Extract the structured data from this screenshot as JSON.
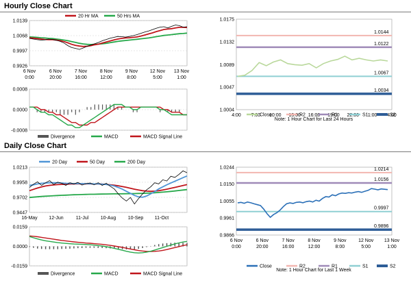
{
  "sections": {
    "hourly_title": "Hourly Close Chart",
    "daily_title": "Daily Close Chart"
  },
  "colors": {
    "close_light": "#b9d89b",
    "close_blue": "#2a6fb7",
    "r2": "#f2b6b0",
    "r1": "#9f8ab8",
    "s1": "#8fcfd3",
    "s2": "#2e5d97",
    "ma_short": "#c0151b",
    "ma_long": "#26a84a",
    "ma_mid": "#4f95d6",
    "price": "#000000",
    "macd": "#26a84a",
    "signal": "#c0151b",
    "divergence": "#555555"
  },
  "chart_data": [
    {
      "id": "hourly_price_ma",
      "type": "line",
      "y_ticks": [
        "1.0139",
        "1.0068",
        "0.9997",
        "0.9926"
      ],
      "y_tick_values": [
        1.0139,
        1.0068,
        0.9997,
        0.9926
      ],
      "ylim": [
        0.9926,
        1.0139
      ],
      "x_labels": [
        [
          "6 Nov",
          "0:00"
        ],
        [
          "6 Nov",
          "20:00"
        ],
        [
          "7 Nov",
          "16:00"
        ],
        [
          "8 Nov",
          "12:00"
        ],
        [
          "9 Nov",
          "8:00"
        ],
        [
          "12 Nov",
          "5:00"
        ],
        [
          "13 Nov",
          "1:00"
        ]
      ],
      "legend": [
        "20 Hr MA",
        "50 Hrs MA"
      ],
      "series": [
        {
          "name": "Price",
          "values": [
            1.0055,
            1.0052,
            1.0049,
            1.0047,
            1.0048,
            1.0052,
            1.005,
            1.0046,
            1.0041,
            1.0033,
            1.0021,
            1.0012,
            1.0008,
            1.0003,
            1.001,
            1.0018,
            1.0024,
            1.003,
            1.0036,
            1.0044,
            1.005,
            1.0056,
            1.006,
            1.0064,
            1.0063,
            1.0061,
            1.0064,
            1.0068,
            1.0073,
            1.0079,
            1.0085,
            1.009,
            1.0096,
            1.0103,
            1.0108,
            1.011,
            1.0104,
            1.0112,
            1.0118,
            1.0115,
            1.0108,
            1.011
          ]
        },
        {
          "name": "20 Hr MA",
          "values": [
            1.0058,
            1.0056,
            1.0054,
            1.0052,
            1.005,
            1.0049,
            1.0049,
            1.0047,
            1.0044,
            1.004,
            1.0034,
            1.0027,
            1.0022,
            1.0019,
            1.0017,
            1.0018,
            1.0021,
            1.0025,
            1.0028,
            1.0033,
            1.0038,
            1.0043,
            1.0048,
            1.0052,
            1.0055,
            1.0057,
            1.0058,
            1.006,
            1.0062,
            1.0066,
            1.0071,
            1.0076,
            1.0081,
            1.0087,
            1.0092,
            1.0097,
            1.0099,
            1.0101,
            1.0104,
            1.0107,
            1.0107,
            1.0106
          ]
        },
        {
          "name": "50 Hrs MA",
          "values": [
            1.0062,
            1.0061,
            1.006,
            1.0058,
            1.0057,
            1.0055,
            1.0054,
            1.0052,
            1.005,
            1.0047,
            1.0044,
            1.004,
            1.0036,
            1.0032,
            1.0029,
            1.0027,
            1.0026,
            1.0027,
            1.0028,
            1.003,
            1.0032,
            1.0035,
            1.0038,
            1.0041,
            1.0043,
            1.0045,
            1.0047,
            1.0049,
            1.0051,
            1.0053,
            1.0055,
            1.0057,
            1.006,
            1.0063,
            1.0066,
            1.0069,
            1.0071,
            1.0073,
            1.0075,
            1.0077,
            1.0078,
            1.008
          ]
        }
      ]
    },
    {
      "id": "hourly_macd",
      "type": "line",
      "y_ticks": [
        "0.0008",
        "0.0000",
        "-0.0008"
      ],
      "y_tick_values": [
        0.0008,
        0,
        -0.0008
      ],
      "ylim": [
        -0.0008,
        0.0008
      ],
      "legend": [
        "Divergence",
        "MACD",
        "MACD Signal Line"
      ],
      "series": [
        {
          "name": "MACD",
          "values": [
            0.0001,
            0.0001,
            0.0,
            -0.0001,
            -0.0001,
            -0.0002,
            -0.0002,
            -0.0003,
            -0.0004,
            -0.0005,
            -0.0006,
            -0.0006,
            -0.0007,
            -0.0007,
            -0.0006,
            -0.0005,
            -0.0004,
            -0.0003,
            -0.0002,
            -0.0001,
            0.0,
            0.0001,
            0.0002,
            0.0002,
            0.0002,
            0.0001,
            0.0001,
            0.0,
            0.0,
            0.0001,
            0.0001,
            0.0001,
            0.0001,
            0.0001,
            0.0,
            0.0,
            -0.0001,
            -0.0002,
            -0.0002,
            -0.0002,
            -0.0002,
            -0.0002
          ]
        },
        {
          "name": "MACD Signal Line",
          "values": [
            0.0001,
            0.0001,
            0.0001,
            0.0,
            0.0,
            -0.0001,
            -0.0001,
            -0.0002,
            -0.0002,
            -0.0003,
            -0.0004,
            -0.0005,
            -0.0005,
            -0.0006,
            -0.0006,
            -0.0006,
            -0.0005,
            -0.0005,
            -0.0004,
            -0.0003,
            -0.0002,
            -0.0001,
            0.0,
            0.0001,
            0.0001,
            0.0001,
            0.0001,
            0.0001,
            0.0001,
            0.0001,
            0.0001,
            0.0001,
            0.0001,
            0.0001,
            0.0001,
            0.0,
            0.0,
            -0.0001,
            -0.0001,
            -0.0001,
            -0.0002,
            -0.0002
          ]
        },
        {
          "name": "Divergence",
          "values": [
            0.0,
            0.0,
            -0.0001,
            -0.0001,
            -0.0001,
            -0.0001,
            -0.0001,
            -0.0001,
            -0.0002,
            -0.0002,
            -0.0002,
            -0.0001,
            -0.0002,
            -0.0001,
            0.0,
            0.0001,
            0.0001,
            0.0002,
            0.0002,
            0.0002,
            0.0002,
            0.0002,
            0.0002,
            0.0001,
            0.0001,
            0.0,
            0.0,
            -0.0001,
            -0.0001,
            0.0,
            0.0,
            0.0,
            0.0,
            0.0,
            -0.0001,
            0.0,
            -0.0001,
            -0.0001,
            -0.0001,
            -0.0001,
            0.0,
            0.0
          ]
        }
      ]
    },
    {
      "id": "hourly_pivots",
      "type": "line",
      "y_ticks": [
        "1.0175",
        "1.0132",
        "1.0089",
        "1.0047",
        "1.0004"
      ],
      "y_tick_values": [
        1.0175,
        1.0132,
        1.0089,
        1.0047,
        1.0004
      ],
      "ylim": [
        1.0004,
        1.0175
      ],
      "x_labels": [
        "4:00",
        "7:00",
        "10:00",
        "13:00",
        "16:00",
        "19:00",
        "22:00",
        "1:00",
        "4:00"
      ],
      "levels": [
        {
          "name": "R2",
          "value": 1.0144,
          "label": "1.0144"
        },
        {
          "name": "R1",
          "value": 1.0122,
          "label": "1.0122"
        },
        {
          "name": "S1",
          "value": 1.0067,
          "label": "1.0067"
        },
        {
          "name": "S2",
          "value": 1.0034,
          "label": "1.0034"
        }
      ],
      "series": [
        {
          "name": "Close",
          "values": [
            1.0067,
            1.0069,
            1.0078,
            1.0093,
            1.0087,
            1.0094,
            1.0098,
            1.0091,
            1.0089,
            1.0088,
            1.0091,
            1.0083,
            1.0091,
            1.0096,
            1.0099,
            1.0105,
            1.0098,
            1.0101,
            1.0098,
            1.0096,
            1.0098,
            1.0096
          ]
        }
      ],
      "legend": [
        "Close",
        "R2",
        "R1",
        "S1",
        "S2"
      ],
      "note": "Note: 1 Hour Chart for Last 24 Hours"
    },
    {
      "id": "daily_price_ma",
      "type": "line",
      "y_ticks": [
        "1.0213",
        "0.9958",
        "0.9702",
        "0.9447"
      ],
      "y_tick_values": [
        1.0213,
        0.9958,
        0.9702,
        0.9447
      ],
      "ylim": [
        0.9447,
        1.0213
      ],
      "x_labels": [
        "16-May",
        "12-Jun",
        "11-Jul",
        "10-Aug",
        "10-Sep",
        "11-Oct"
      ],
      "legend": [
        "20 Day",
        "50 Day",
        "200 Day"
      ],
      "series": [
        {
          "name": "Price",
          "values": [
            0.987,
            0.9925,
            0.9965,
            0.9905,
            0.995,
            0.9985,
            0.992,
            0.996,
            0.994,
            0.9905,
            0.995,
            0.993,
            0.9955,
            0.991,
            0.9935,
            0.9945,
            0.9915,
            0.995,
            0.9905,
            0.994,
            0.989,
            0.9845,
            0.976,
            0.969,
            0.964,
            0.97,
            0.959,
            0.968,
            0.976,
            0.983,
            0.988,
            0.995,
            0.993,
            1.0,
            0.998,
            1.006,
            1.004,
            1.009,
            1.015,
            1.012
          ]
        },
        {
          "name": "20 Day",
          "values": [
            0.9905,
            0.9915,
            0.993,
            0.994,
            0.9945,
            0.995,
            0.995,
            0.9948,
            0.9945,
            0.994,
            0.9938,
            0.9935,
            0.9935,
            0.9935,
            0.9933,
            0.9932,
            0.993,
            0.993,
            0.9925,
            0.992,
            0.991,
            0.9895,
            0.987,
            0.984,
            0.9805,
            0.977,
            0.9735,
            0.971,
            0.9705,
            0.9725,
            0.976,
            0.98,
            0.9845,
            0.988,
            0.9915,
            0.9945,
            0.9975,
            1.0005,
            1.0035,
            1.0065
          ]
        },
        {
          "name": "50 Day",
          "values": [
            0.9815,
            0.9838,
            0.986,
            0.988,
            0.9895,
            0.9905,
            0.9912,
            0.9918,
            0.9922,
            0.9925,
            0.9927,
            0.9929,
            0.993,
            0.9931,
            0.9931,
            0.9931,
            0.993,
            0.9929,
            0.9926,
            0.9922,
            0.9916,
            0.9908,
            0.9898,
            0.9886,
            0.9872,
            0.9856,
            0.984,
            0.9826,
            0.9815,
            0.9808,
            0.9805,
            0.9808,
            0.9815,
            0.9826,
            0.984,
            0.9855,
            0.9871,
            0.9887,
            0.9903,
            0.9918
          ]
        },
        {
          "name": "200 Day",
          "values": [
            0.97,
            0.9706,
            0.9712,
            0.9717,
            0.9722,
            0.9726,
            0.973,
            0.9734,
            0.9737,
            0.974,
            0.9743,
            0.9746,
            0.9748,
            0.975,
            0.9752,
            0.9754,
            0.9755,
            0.9757,
            0.9758,
            0.9759,
            0.976,
            0.9761,
            0.9762,
            0.9763,
            0.9764,
            0.9765,
            0.9766,
            0.9768,
            0.977,
            0.9773,
            0.9776,
            0.978,
            0.9785,
            0.979,
            0.9796,
            0.9803,
            0.981,
            0.9818,
            0.9826,
            0.9834
          ]
        }
      ]
    },
    {
      "id": "daily_macd",
      "type": "line",
      "y_ticks": [
        "0.0159",
        "0.0000",
        "-0.0159"
      ],
      "y_tick_values": [
        0.0159,
        0,
        -0.0159
      ],
      "ylim": [
        -0.0159,
        0.0159
      ],
      "legend": [
        "Divergence",
        "MACD",
        "MACD Signal Line"
      ],
      "series": [
        {
          "name": "MACD",
          "values": [
            0.008,
            0.007,
            0.006,
            0.0052,
            0.0045,
            0.004,
            0.0035,
            0.003,
            0.0027,
            0.0024,
            0.0021,
            0.0019,
            0.0018,
            0.0016,
            0.0015,
            0.0013,
            0.001,
            0.0006,
            0.0002,
            -0.0003,
            -0.0009,
            -0.0016,
            -0.0024,
            -0.0032,
            -0.004,
            -0.0047,
            -0.0052,
            -0.0054,
            -0.0052,
            -0.0047,
            -0.004,
            -0.003,
            -0.002,
            -0.001,
            0.0,
            0.001,
            0.002,
            0.0028,
            0.0035,
            0.004
          ]
        },
        {
          "name": "MACD Signal Line",
          "values": [
            0.0085,
            0.0082,
            0.0078,
            0.0073,
            0.0068,
            0.0063,
            0.0058,
            0.0053,
            0.0048,
            0.0044,
            0.004,
            0.0036,
            0.0033,
            0.003,
            0.0027,
            0.0025,
            0.0022,
            0.0019,
            0.0016,
            0.0012,
            0.0008,
            0.0003,
            -0.0003,
            -0.0009,
            -0.0015,
            -0.0022,
            -0.0028,
            -0.0034,
            -0.0038,
            -0.0041,
            -0.0042,
            -0.0041,
            -0.0038,
            -0.0033,
            -0.0026,
            -0.0018,
            -0.001,
            -0.0002,
            0.0006,
            0.0013
          ]
        },
        {
          "name": "Divergence",
          "values": [
            -0.0005,
            -0.0012,
            -0.0018,
            -0.0021,
            -0.0023,
            -0.0023,
            -0.0023,
            -0.0023,
            -0.0021,
            -0.002,
            -0.0019,
            -0.0017,
            -0.0015,
            -0.0014,
            -0.0012,
            -0.0012,
            -0.0012,
            -0.0013,
            -0.0014,
            -0.0015,
            -0.0017,
            -0.0019,
            -0.0021,
            -0.0023,
            -0.0025,
            -0.0025,
            -0.0024,
            -0.002,
            -0.0014,
            -0.0006,
            0.0002,
            0.0011,
            0.0018,
            0.0023,
            0.0026,
            0.0028,
            0.003,
            0.003,
            0.0029,
            0.0027
          ]
        }
      ]
    },
    {
      "id": "daily_pivots",
      "type": "line",
      "y_ticks": [
        "1.0244",
        "1.0150",
        "1.0055",
        "0.9961",
        "0.9866"
      ],
      "y_tick_values": [
        1.0244,
        1.015,
        1.0055,
        0.9961,
        0.9866
      ],
      "ylim": [
        0.9866,
        1.0244
      ],
      "x_labels": [
        [
          "6 Nov",
          "0:00"
        ],
        [
          "6 Nov",
          "20:00"
        ],
        [
          "7 Nov",
          "16:00"
        ],
        [
          "8 Nov",
          "12:00"
        ],
        [
          "9 Nov",
          "8:00"
        ],
        [
          "12 Nov",
          "5:00"
        ],
        [
          "13 Nov",
          "1:00"
        ]
      ],
      "levels": [
        {
          "name": "R2",
          "value": 1.0214,
          "label": "1.0214"
        },
        {
          "name": "R1",
          "value": 1.0156,
          "label": "1.0156"
        },
        {
          "name": "S1",
          "value": 0.9997,
          "label": "0.9997"
        },
        {
          "name": "S2",
          "value": 0.9896,
          "label": "0.9896"
        }
      ],
      "series": [
        {
          "name": "Close",
          "values": [
            1.0045,
            1.0048,
            1.0043,
            1.005,
            1.0046,
            1.004,
            1.0035,
            1.003,
            1.001,
            0.9985,
            0.9965,
            0.998,
            0.999,
            1.0005,
            1.0025,
            1.004,
            1.0045,
            1.0042,
            1.0048,
            1.005,
            1.0046,
            1.0052,
            1.0055,
            1.005,
            1.006,
            1.0055,
            1.007,
            1.008,
            1.0078,
            1.009,
            1.0085,
            1.0095,
            1.01,
            1.0098,
            1.0102,
            1.01,
            1.0105,
            1.0108,
            1.0104,
            1.011,
            1.0115,
            1.0125,
            1.0122,
            1.0118,
            1.0123,
            1.0121,
            1.0119
          ]
        }
      ],
      "legend": [
        "Close",
        "R2",
        "R1",
        "S1",
        "S2"
      ],
      "note": "Note: 1 Hour Chart for Last 1 Week"
    }
  ]
}
